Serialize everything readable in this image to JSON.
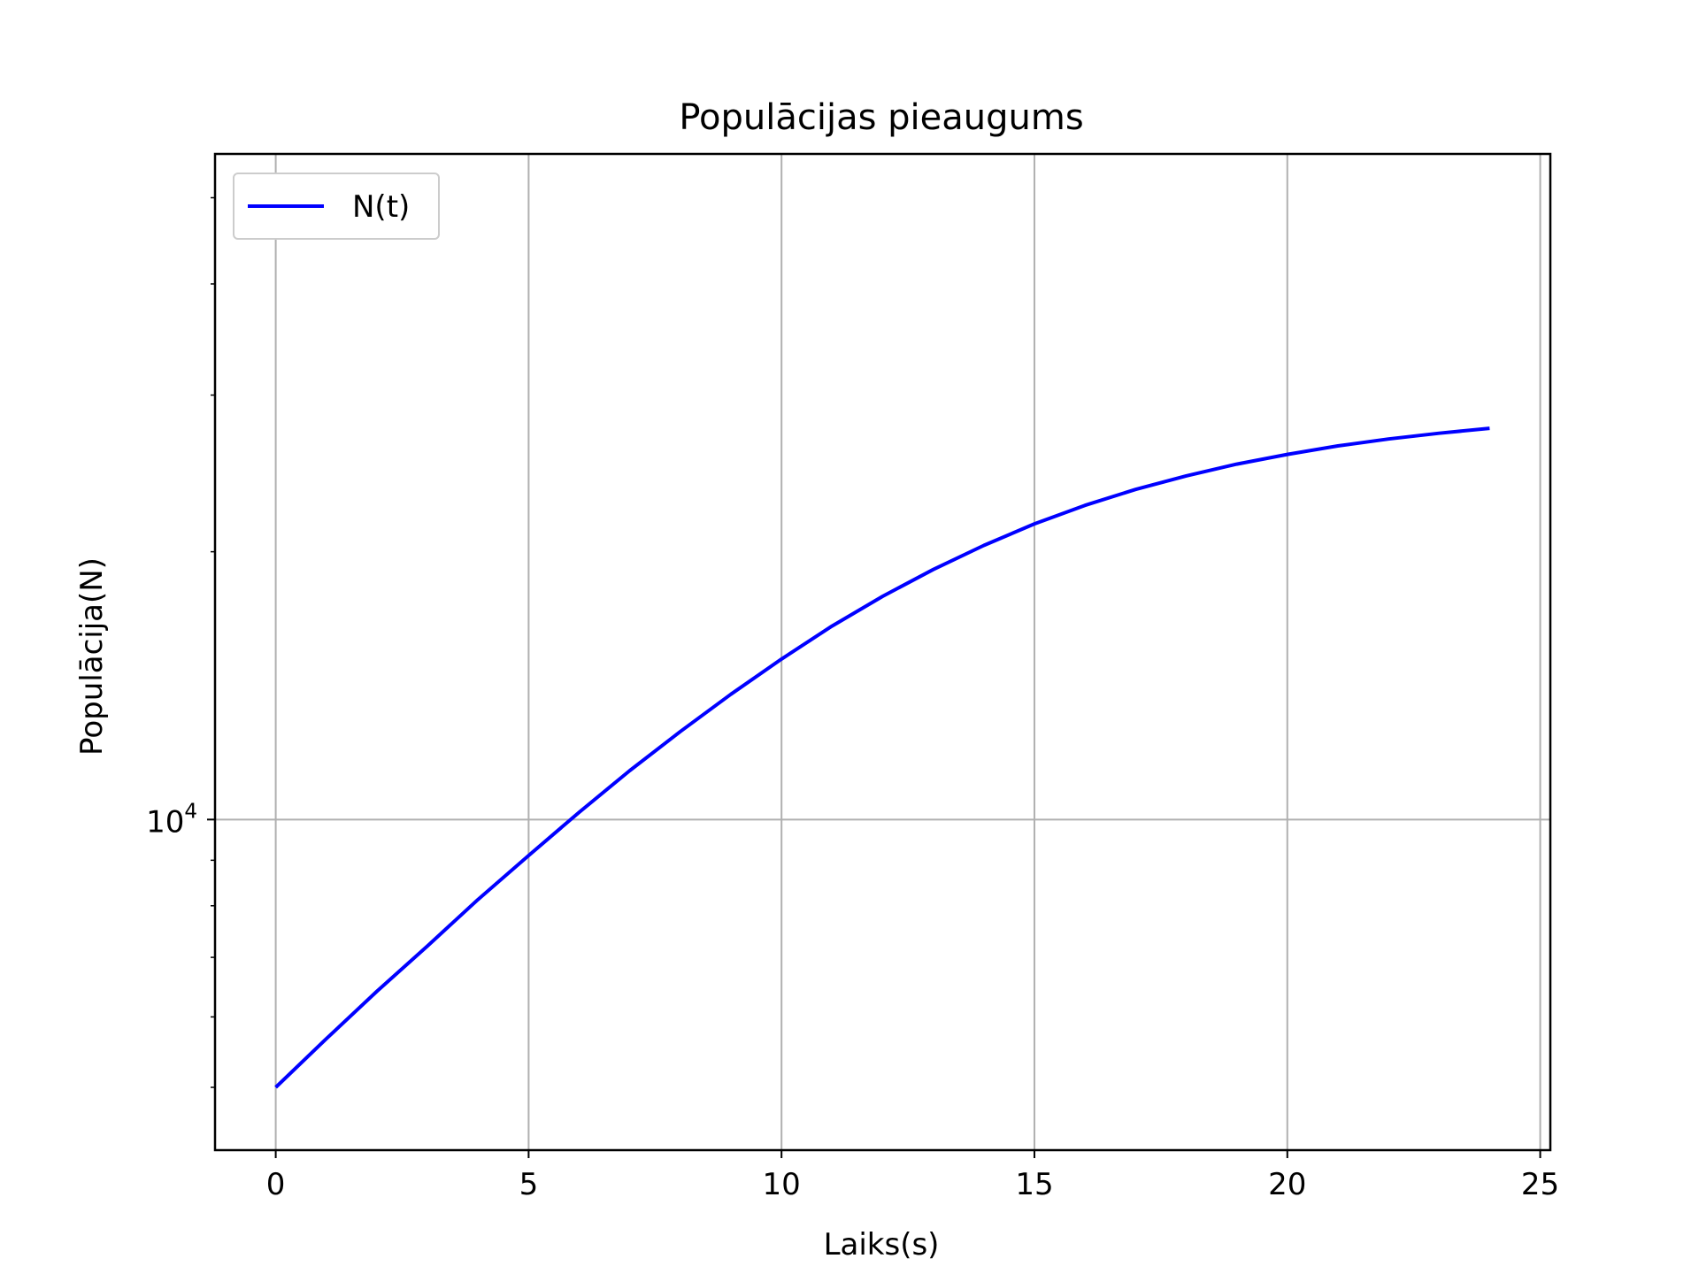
{
  "chart_data": {
    "type": "line",
    "title": "Populācijas pieaugums",
    "xlabel": "Laiks(s)",
    "ylabel": "Populācija(N)",
    "x_scale": "linear",
    "y_scale": "log",
    "xlim": [
      -1.2,
      25.2
    ],
    "ylim": [
      4250,
      56000
    ],
    "x_ticks": [
      0,
      5,
      10,
      15,
      20,
      25
    ],
    "x_tick_labels": [
      "0",
      "5",
      "10",
      "15",
      "20",
      "25"
    ],
    "y_major_ticks": [
      10000
    ],
    "y_major_tick_label_base": "10",
    "y_major_tick_label_exp": "4",
    "y_minor_ticks": [
      5000,
      6000,
      7000,
      8000,
      9000,
      20000,
      30000,
      40000,
      50000
    ],
    "grid": true,
    "legend_position": "upper-left",
    "series": [
      {
        "name": "N(t)",
        "color": "#0000ff",
        "x": [
          0,
          1,
          2,
          3,
          4,
          5,
          6,
          7,
          8,
          9,
          10,
          11,
          12,
          13,
          14,
          15,
          16,
          17,
          18,
          19,
          20,
          21,
          22,
          23,
          24
        ],
        "y": [
          5000,
          5670,
          6410,
          7210,
          8130,
          9110,
          10190,
          11350,
          12560,
          13830,
          15150,
          16500,
          17820,
          19100,
          20330,
          21500,
          22550,
          23500,
          24340,
          25090,
          25730,
          26300,
          26780,
          27180,
          27530
        ]
      }
    ]
  }
}
